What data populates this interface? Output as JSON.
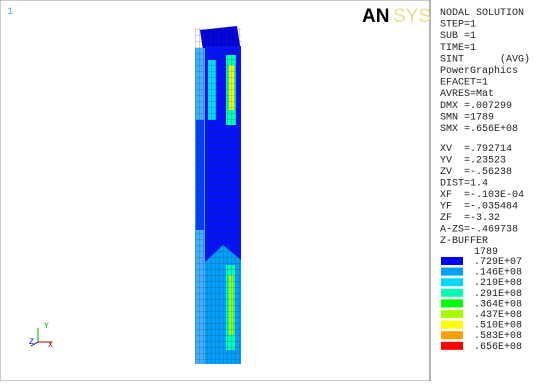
{
  "window_number": "1",
  "logo": [
    "AN",
    "SYS"
  ],
  "info_top": [
    "NODAL SOLUTION",
    "STEP=1",
    "SUB =1",
    "TIME=1",
    "SINT      (AVG)",
    "PowerGraphics",
    "EFACET=1",
    "AVRES=Mat",
    "DMX =.007299",
    "SMN =1789",
    "SMX =.656E+08"
  ],
  "info_bottom": [
    "XV  =.792714",
    "YV  =.23523",
    "ZV  =-.56238",
    "DIST=1.4",
    "XF  =-.103E-04",
    "YF  =-.035484",
    "ZF  =-3.32",
    "A-ZS=-.469738",
    "Z-BUFFER"
  ],
  "legend": {
    "min": "1789",
    "items": [
      {
        "label": ".729E+07",
        "color": "#0000ff"
      },
      {
        "label": ".146E+08",
        "color": "#00a0ff"
      },
      {
        "label": ".219E+08",
        "color": "#00d8ff"
      },
      {
        "label": ".291E+08",
        "color": "#00ffb0"
      },
      {
        "label": ".364E+08",
        "color": "#00ff00"
      },
      {
        "label": ".437E+08",
        "color": "#a8ff00"
      },
      {
        "label": ".510E+08",
        "color": "#ffff00"
      },
      {
        "label": ".583E+08",
        "color": "#ffa000"
      },
      {
        "label": ".656E+08",
        "color": "#ff0000"
      }
    ]
  },
  "triad": [
    "Y",
    "X",
    "Z"
  ]
}
